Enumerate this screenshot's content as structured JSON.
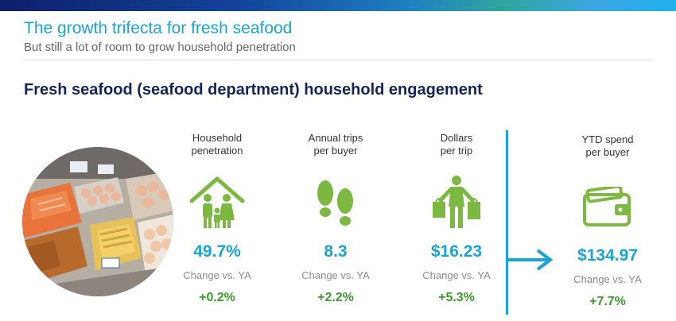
{
  "header": {
    "title": "The growth trifecta for fresh seafood",
    "subtitle": "But still a lot of room to grow household penetration"
  },
  "section": {
    "heading": "Fresh seafood (seafood department) household engagement"
  },
  "photo": {
    "description_icon": "seafood-display-photo"
  },
  "metrics": [
    {
      "label": "Household\npenetration",
      "icon": "household-icon",
      "value": "49.7%",
      "change_label": "Change vs. YA",
      "change_value": "+0.2%"
    },
    {
      "label": "Annual trips\nper buyer",
      "icon": "footprints-icon",
      "value": "8.3",
      "change_label": "Change vs. YA",
      "change_value": "+2.2%"
    },
    {
      "label": "Dollars\nper trip",
      "icon": "shopper-bags-icon",
      "value": "$16.23",
      "change_label": "Change vs. YA",
      "change_value": "+5.3%"
    },
    {
      "label": "YTD spend\nper buyer",
      "icon": "wallet-icon",
      "value": "$134.97",
      "change_label": "Change vs. YA",
      "change_value": "+7.7%"
    }
  ],
  "colors": {
    "title": "#1aa3d6",
    "heading": "#14245e",
    "value": "#1aa3d6",
    "change_positive": "#3c9a2e",
    "icon_green": "#7cb842"
  }
}
